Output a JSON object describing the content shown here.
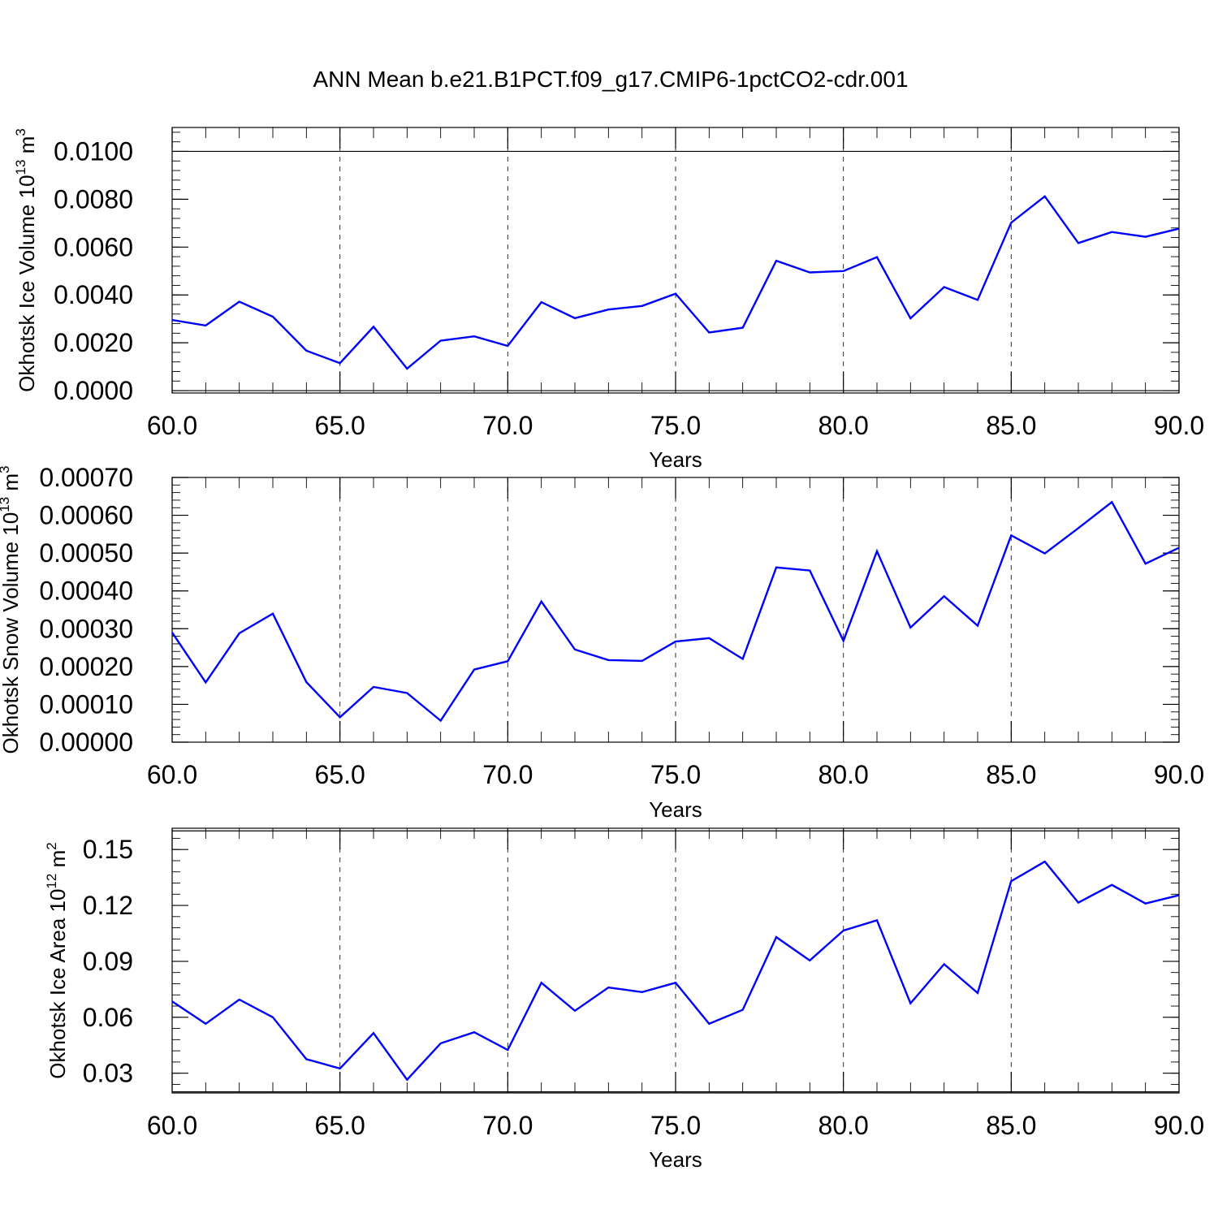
{
  "figure": {
    "title": "ANN Mean b.e21.B1PCT.f09_g17.CMIP6-1pctCO2-cdr.001"
  },
  "chart_data": [
    {
      "type": "line",
      "title": "",
      "xlabel": "Years",
      "ylabel": "Okhotsk Ice Volume 10",
      "ylabel_exponent": "13",
      "ylabel_unit": "m",
      "ylabel_unit_exponent": "3",
      "xlim": [
        60,
        90
      ],
      "ylim": [
        -0.0001,
        0.011
      ],
      "x_ticks": [
        60,
        65,
        70,
        75,
        80,
        85,
        90
      ],
      "x_tick_labels": [
        "60.0",
        "65.0",
        "70.0",
        "75.0",
        "80.0",
        "85.0",
        "90.0"
      ],
      "y_ticks": [
        0.0,
        0.002,
        0.004,
        0.006,
        0.008,
        0.01
      ],
      "y_tick_labels": [
        "0.0000",
        "0.0020",
        "0.0040",
        "0.0060",
        "0.0080",
        "0.0100"
      ],
      "reference_lines": [
        0.0,
        0.01
      ],
      "grid": "vertical dashed at major x ticks",
      "color": "#0000ff",
      "x": [
        60,
        61,
        62,
        63,
        64,
        65,
        66,
        67,
        68,
        69,
        70,
        71,
        72,
        73,
        74,
        75,
        76,
        77,
        78,
        79,
        80,
        81,
        82,
        83,
        84,
        85,
        86,
        87,
        88,
        89,
        90
      ],
      "values": [
        0.00295,
        0.00272,
        0.00372,
        0.00309,
        0.00167,
        0.00115,
        0.00267,
        0.00092,
        0.00209,
        0.00227,
        0.00187,
        0.0037,
        0.00303,
        0.00339,
        0.00354,
        0.00405,
        0.00243,
        0.00263,
        0.00543,
        0.00494,
        0.005,
        0.00558,
        0.00302,
        0.00433,
        0.00379,
        0.00702,
        0.00812,
        0.00617,
        0.00663,
        0.00643,
        0.00677
      ]
    },
    {
      "type": "line",
      "title": "",
      "xlabel": "Years",
      "ylabel": "Okhotsk Snow Volume 10",
      "ylabel_exponent": "13",
      "ylabel_unit": "m",
      "ylabel_unit_exponent": "3",
      "xlim": [
        60,
        90
      ],
      "ylim": [
        -0.0,
        0.0007
      ],
      "x_ticks": [
        60,
        65,
        70,
        75,
        80,
        85,
        90
      ],
      "x_tick_labels": [
        "60.0",
        "65.0",
        "70.0",
        "75.0",
        "80.0",
        "85.0",
        "90.0"
      ],
      "y_ticks": [
        0.0,
        0.0001,
        0.0002,
        0.0003,
        0.0004,
        0.0005,
        0.0006,
        0.0007
      ],
      "y_tick_labels": [
        "0.00000",
        "0.00010",
        "0.00020",
        "0.00030",
        "0.00040",
        "0.00050",
        "0.00060",
        "0.00070"
      ],
      "reference_lines": [],
      "grid": "vertical dashed at major x ticks",
      "color": "#0000ff",
      "x": [
        60,
        61,
        62,
        63,
        64,
        65,
        66,
        67,
        68,
        69,
        70,
        71,
        72,
        73,
        74,
        75,
        76,
        77,
        78,
        79,
        80,
        81,
        82,
        83,
        84,
        85,
        86,
        87,
        88,
        89,
        90
      ],
      "values": [
        0.00029,
        0.000158,
        0.000288,
        0.00034,
        0.000159,
        6.6e-05,
        0.000146,
        0.00013,
        5.7e-05,
        0.000192,
        0.000214,
        0.000372,
        0.000245,
        0.000217,
        0.000215,
        0.000266,
        0.000275,
        0.00022,
        0.000462,
        0.000454,
        0.000268,
        0.000505,
        0.000303,
        0.000386,
        0.000308,
        0.000547,
        0.000499,
        0.000566,
        0.000635,
        0.000472,
        0.000514
      ]
    },
    {
      "type": "line",
      "title": "",
      "xlabel": "Years",
      "ylabel": "Okhotsk Ice Area 10",
      "ylabel_exponent": "12",
      "ylabel_unit": "m",
      "ylabel_unit_exponent": "2",
      "xlim": [
        60,
        90
      ],
      "ylim": [
        0.0194,
        0.1614
      ],
      "x_ticks": [
        60,
        65,
        70,
        75,
        80,
        85,
        90
      ],
      "x_tick_labels": [
        "60.0",
        "65.0",
        "70.0",
        "75.0",
        "80.0",
        "85.0",
        "90.0"
      ],
      "y_ticks": [
        0.03,
        0.06,
        0.09,
        0.12,
        0.15
      ],
      "y_tick_labels": [
        "0.03",
        "0.06",
        "0.09",
        "0.12",
        "0.15"
      ],
      "reference_lines": [
        0.02,
        0.16
      ],
      "grid": "vertical dashed at major x ticks",
      "color": "#0000ff",
      "x": [
        60,
        61,
        62,
        63,
        64,
        65,
        66,
        67,
        68,
        69,
        70,
        71,
        72,
        73,
        74,
        75,
        76,
        77,
        78,
        79,
        80,
        81,
        82,
        83,
        84,
        85,
        86,
        87,
        88,
        89,
        90
      ],
      "values": [
        0.0685,
        0.0565,
        0.0695,
        0.06,
        0.0375,
        0.0325,
        0.0515,
        0.0265,
        0.046,
        0.052,
        0.0425,
        0.0785,
        0.0635,
        0.076,
        0.0735,
        0.0785,
        0.0565,
        0.064,
        0.103,
        0.0905,
        0.1065,
        0.112,
        0.0675,
        0.0885,
        0.073,
        0.133,
        0.1435,
        0.1215,
        0.131,
        0.121,
        0.1255
      ]
    }
  ]
}
